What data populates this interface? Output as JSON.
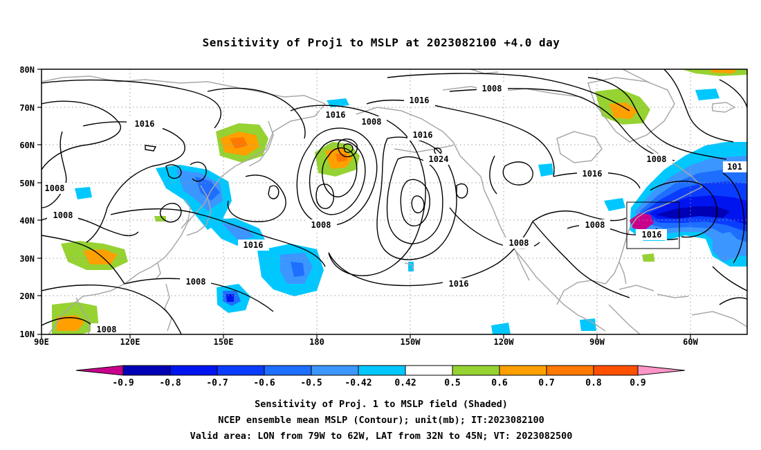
{
  "title": "Sensitivity of Proj1 to MSLP at 2023082100 +4.0 day",
  "colors": {
    "ocean": "#ffffff",
    "coast": "#a8a8a8",
    "contour": "#000000",
    "grid": "#9a9a9a"
  },
  "axes": {
    "lat_ticks": [
      "80N",
      "70N",
      "60N",
      "50N",
      "40N",
      "30N",
      "20N",
      "10N"
    ],
    "lon_ticks": [
      "90E",
      "120E",
      "150E",
      "180",
      "150W",
      "120W",
      "90W",
      "60W"
    ]
  },
  "contour_labels": [
    {
      "id": "c1",
      "text": "1008"
    },
    {
      "id": "c2",
      "text": "1016"
    },
    {
      "id": "c3",
      "text": "1016"
    },
    {
      "id": "c4",
      "text": "1016"
    },
    {
      "id": "c5",
      "text": "1008"
    },
    {
      "id": "c6",
      "text": "1016"
    },
    {
      "id": "c7",
      "text": "1024"
    },
    {
      "id": "c8",
      "text": "1016"
    },
    {
      "id": "c9",
      "text": "1008"
    },
    {
      "id": "c10",
      "text": "1008"
    },
    {
      "id": "c11",
      "text": "1008"
    },
    {
      "id": "c12",
      "text": "1008"
    },
    {
      "id": "c13",
      "text": "1016"
    },
    {
      "id": "c14",
      "text": "1008"
    },
    {
      "id": "c15",
      "text": "1016"
    },
    {
      "id": "c16",
      "text": "1008"
    },
    {
      "id": "c17",
      "text": "1008"
    },
    {
      "id": "c18",
      "text": "1016"
    },
    {
      "id": "c19",
      "text": "101"
    }
  ],
  "colorbar": {
    "labels": [
      "-0.9",
      "-0.8",
      "-0.7",
      "-0.6",
      "-0.5",
      "-0.42",
      "0.42",
      "0.5",
      "0.6",
      "0.7",
      "0.8",
      "0.9"
    ],
    "colors": [
      "#c8008c",
      "#0000b4",
      "#0014f0",
      "#0a3cff",
      "#1e6eff",
      "#3c96ff",
      "#00c8ff",
      "#ffffff",
      "#96d232",
      "#ffa000",
      "#ff7800",
      "#ff5000",
      "#ff0000",
      "#ff96c8"
    ]
  },
  "footer": {
    "line1": "Sensitivity of Proj. 1 to MSLP field (Shaded)",
    "line2": "NCEP ensemble mean MSLP (Contour); unit(mb); IT:2023082100",
    "line3": "Valid area: LON from 79W to 62W, LAT from 32N to 45N; VT: 2023082500"
  }
}
